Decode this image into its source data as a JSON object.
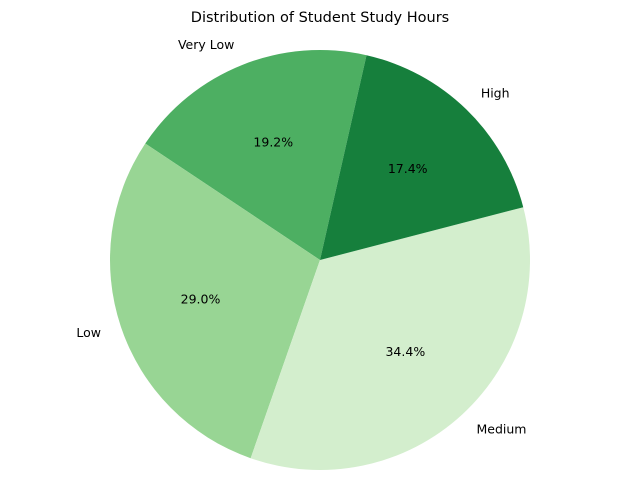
{
  "chart_data": {
    "type": "pie",
    "title": "Distribution of Student Study Hours",
    "categories": [
      "Very Low",
      "Low",
      "Medium",
      "High"
    ],
    "values": [
      19.2,
      29.0,
      34.4,
      17.4
    ],
    "value_labels": [
      "19.2%",
      "29.0%",
      "34.4%",
      "17.4%"
    ],
    "colors": [
      "#4daf62",
      "#98d594",
      "#d3eecd",
      "#167f3c"
    ],
    "legend": "none"
  }
}
